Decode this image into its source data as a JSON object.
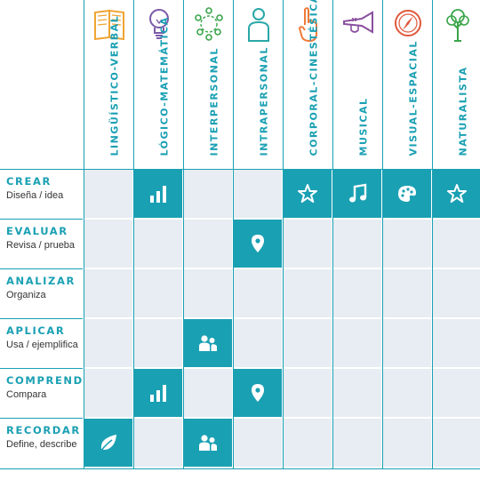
{
  "colors": {
    "accent": "#1aa0b3",
    "cell_empty": "#e7edf2",
    "icon_yellow": "#f0a433",
    "icon_purple": "#7c5aa8",
    "icon_green": "#3aa54a",
    "icon_teal": "#2aa7a7",
    "icon_orange": "#f07a3a",
    "icon_violet": "#8a4f9e",
    "icon_red": "#e0583b"
  },
  "columns": [
    {
      "label": "LINGÜÍSTICO-VERBAL",
      "icon": "book-icon"
    },
    {
      "label": "LÓGICO-MATEMÁTICA",
      "icon": "lightbulb-icon"
    },
    {
      "label": "INTERPERSONAL",
      "icon": "people-circle-icon"
    },
    {
      "label": "INTRAPERSONAL",
      "icon": "person-icon"
    },
    {
      "label": "CORPORAL-CINESTÉSICA",
      "icon": "hand-icon"
    },
    {
      "label": "MUSICAL",
      "icon": "trumpet-icon"
    },
    {
      "label": "VISUAL-ESPACIAL",
      "icon": "compass-icon"
    },
    {
      "label": "NATURALISTA",
      "icon": "tree-icon"
    }
  ],
  "rows": [
    {
      "title": "CREAR",
      "subtitle": "Diseña / idea",
      "cells": [
        "",
        "bar-chart-icon",
        "",
        "",
        "star-icon",
        "music-note-icon",
        "palette-icon",
        "star-icon"
      ]
    },
    {
      "title": "EVALUAR",
      "subtitle": "Revisa / prueba",
      "cells": [
        "",
        "",
        "",
        "map-pin-icon",
        "",
        "",
        "",
        ""
      ]
    },
    {
      "title": "ANALIZAR",
      "subtitle": "Organiza",
      "cells": [
        "",
        "",
        "",
        "",
        "",
        "",
        "",
        ""
      ]
    },
    {
      "title": "APLICAR",
      "subtitle": "Usa / ejemplifica",
      "cells": [
        "",
        "",
        "people-icon",
        "",
        "",
        "",
        "",
        ""
      ]
    },
    {
      "title": "COMPRENDER",
      "subtitle": "Compara",
      "cells": [
        "",
        "bar-chart-icon",
        "",
        "map-pin-icon",
        "",
        "",
        "",
        ""
      ]
    },
    {
      "title": "RECORDAR",
      "subtitle": "Define, describe",
      "cells": [
        "leaf-icon",
        "",
        "people-icon",
        "",
        "",
        "",
        "",
        ""
      ]
    }
  ]
}
